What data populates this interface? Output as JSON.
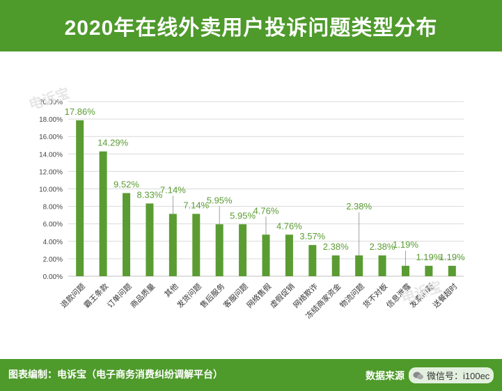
{
  "header": {
    "title": "2020年在线外卖用户投诉问题类型分布"
  },
  "watermark": {
    "brand": "电诉宝"
  },
  "footer": {
    "left": "图表编制：电诉宝（电子商务消费纠纷调解平台）",
    "source_label": "数据来源",
    "wechat": "微信号：i100ec"
  },
  "colors": {
    "bar": "#5a9c32",
    "label": "#5a9c32",
    "header": "#4e9a2b"
  },
  "chart_data": {
    "type": "bar",
    "title": "2020年在线外卖用户投诉问题类型分布",
    "categories": [
      "退款问题",
      "霸王条款",
      "订单问题",
      "商品质量",
      "其他",
      "发货问题",
      "售后服务",
      "客服问题",
      "网络售假",
      "虚假促销",
      "网络欺诈",
      "冻结商家资金",
      "物流问题",
      "货不对板",
      "信息泄露",
      "发票问题",
      "送餐超时"
    ],
    "values": [
      17.86,
      14.29,
      9.52,
      8.33,
      7.14,
      7.14,
      5.95,
      5.95,
      4.76,
      4.76,
      3.57,
      2.38,
      2.38,
      2.38,
      1.19,
      1.19,
      1.19
    ],
    "value_labels": [
      "17.86%",
      "14.29%",
      "9.52%",
      "8.33%",
      "7.14%",
      "7.14%",
      "5.95%",
      "5.95%",
      "4.76%",
      "4.76%",
      "3.57%",
      "2.38%",
      "2.38%",
      "2.38%",
      "1.19%",
      "1.19%",
      "1.19%"
    ],
    "yticks": [
      "0.00%",
      "2.00%",
      "4.00%",
      "6.00%",
      "8.00%",
      "10.00%",
      "12.00%",
      "14.00%",
      "16.00%",
      "18.00%",
      "20.00%"
    ],
    "ylim": [
      0,
      20
    ],
    "grid": true,
    "xlabel": "",
    "ylabel": ""
  }
}
